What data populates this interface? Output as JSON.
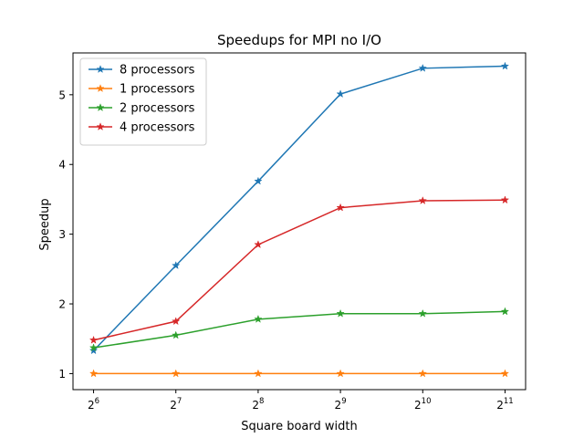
{
  "chart_data": {
    "type": "line",
    "title": "Speedups for MPI no I/O",
    "xlabel": "Square board width",
    "ylabel": "Speedup",
    "x_scale": "log2",
    "x": [
      64,
      128,
      256,
      512,
      1024,
      2048
    ],
    "x_tick_labels": [
      {
        "base": "2",
        "exp": "6"
      },
      {
        "base": "2",
        "exp": "7"
      },
      {
        "base": "2",
        "exp": "8"
      },
      {
        "base": "2",
        "exp": "9"
      },
      {
        "base": "2",
        "exp": "10"
      },
      {
        "base": "2",
        "exp": "11"
      }
    ],
    "y_ticks": [
      1,
      2,
      3,
      4,
      5
    ],
    "ylim": [
      0.77,
      5.6
    ],
    "grid": false,
    "legend_position": "top-left",
    "marker": "star",
    "series": [
      {
        "name": "8 processors",
        "color": "#1f77b4",
        "values": [
          1.33,
          2.55,
          3.76,
          5.01,
          5.38,
          5.41
        ]
      },
      {
        "name": "1 processors",
        "color": "#ff7f0e",
        "values": [
          1.0,
          1.0,
          1.0,
          1.0,
          1.0,
          1.0
        ]
      },
      {
        "name": "2 processors",
        "color": "#2ca02c",
        "values": [
          1.37,
          1.55,
          1.78,
          1.86,
          1.86,
          1.89
        ]
      },
      {
        "name": "4 processors",
        "color": "#d62728",
        "values": [
          1.48,
          1.75,
          2.85,
          3.38,
          3.48,
          3.49
        ]
      }
    ]
  }
}
